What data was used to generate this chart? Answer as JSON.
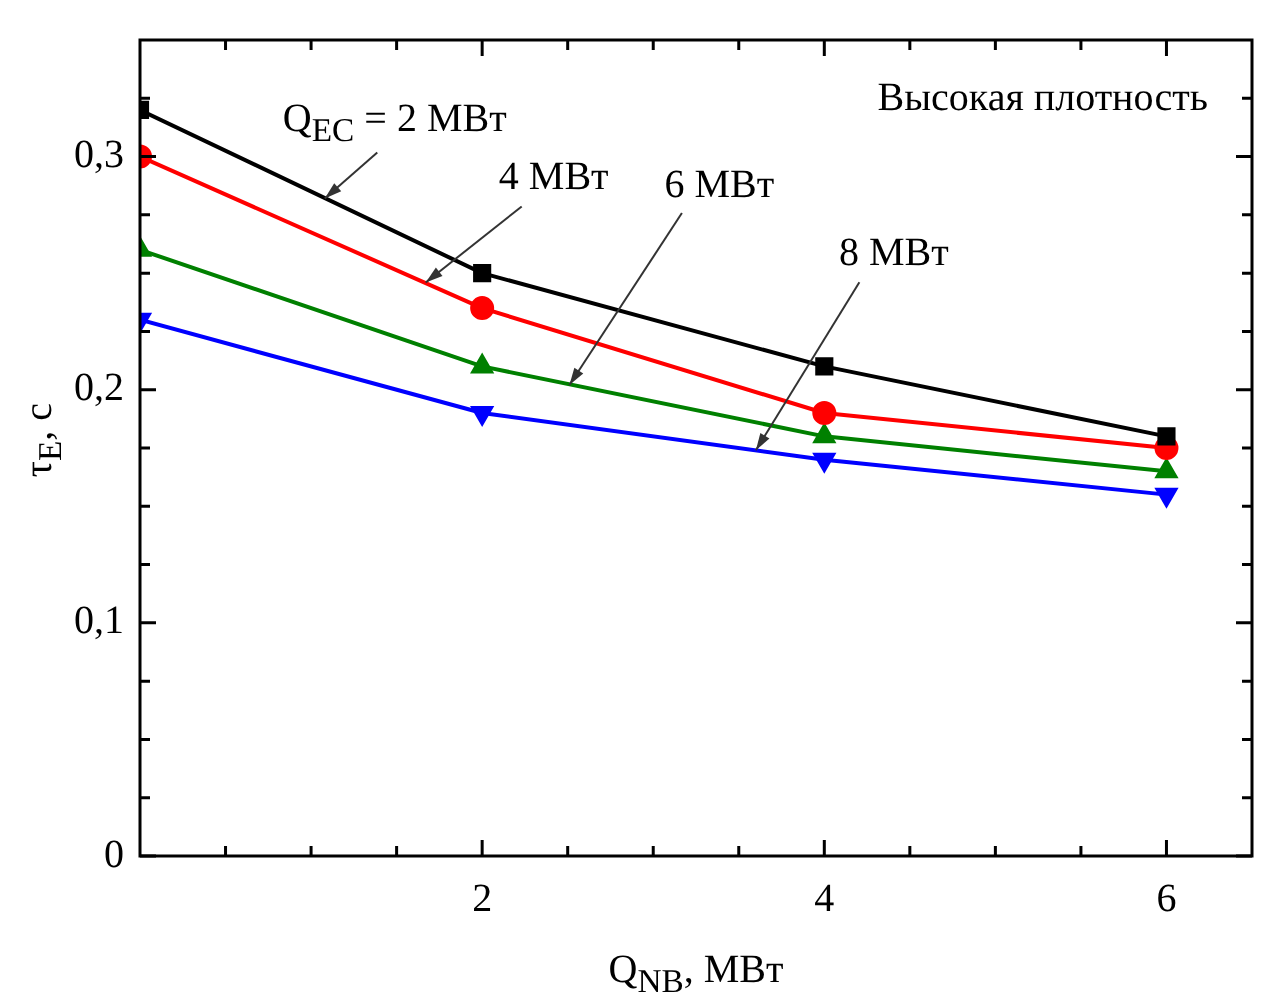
{
  "chart_data": {
    "type": "line",
    "xlabel": "Q$_{NB}$, МВт",
    "ylabel": "τ$_{E}$, с",
    "x": [
      0,
      2,
      4,
      6
    ],
    "series": [
      {
        "color": "#000000",
        "marker": "square",
        "values": [
          0.32,
          0.25,
          0.21,
          0.18
        ]
      },
      {
        "color": "#ff0000",
        "marker": "circle",
        "values": [
          0.3,
          0.235,
          0.19,
          0.175
        ]
      },
      {
        "color": "#008000",
        "marker": "triangle",
        "values": [
          0.26,
          0.21,
          0.18,
          0.165
        ]
      },
      {
        "color": "#0000ff",
        "marker": "triangle_down",
        "values": [
          0.23,
          0.19,
          0.17,
          0.155
        ]
      }
    ],
    "xlim": [
      0,
      6.5
    ],
    "ylim": [
      0,
      0.35
    ],
    "xticks": [
      {
        "value": 0.5,
        "label": null
      },
      {
        "value": 1,
        "label": null
      },
      {
        "value": 1.5,
        "label": null
      },
      2,
      {
        "value": 2.5,
        "label": null
      },
      {
        "value": 3,
        "label": null
      },
      {
        "value": 3.5,
        "label": null
      },
      4,
      {
        "value": 4.5,
        "label": null
      },
      {
        "value": 5,
        "label": null
      },
      {
        "value": 5.5,
        "label": null
      },
      6
    ],
    "yticks": [
      {
        "value": 0,
        "label": "0"
      },
      {
        "value": 0.025,
        "label": null
      },
      {
        "value": 0.05,
        "label": null
      },
      {
        "value": 0.075,
        "label": null
      },
      {
        "value": 0.1,
        "label": "0,1"
      },
      {
        "value": 0.125,
        "label": null
      },
      {
        "value": 0.15,
        "label": null
      },
      {
        "value": 0.175,
        "label": null
      },
      {
        "value": 0.2,
        "label": "0,2"
      },
      {
        "value": 0.225,
        "label": null
      },
      {
        "value": 0.25,
        "label": null
      },
      {
        "value": 0.275,
        "label": null
      },
      {
        "value": 0.3,
        "label": "0,3"
      },
      {
        "value": 0.325,
        "label": null
      }
    ],
    "grid": false,
    "legend": false,
    "line_style": "solid",
    "annotations": [
      {
        "text": "Q$_{EC}$ = 2  МВт",
        "x": 1.08,
        "y": 0.282
      },
      {
        "text": "4 МВт",
        "x": 1.67,
        "y": 0.246
      },
      {
        "text": "6 МВт",
        "x": 2.51,
        "y": 0.202
      },
      {
        "text": "8 МВт",
        "x": 3.6,
        "y": 0.174
      },
      "Высокая плотность"
    ]
  }
}
